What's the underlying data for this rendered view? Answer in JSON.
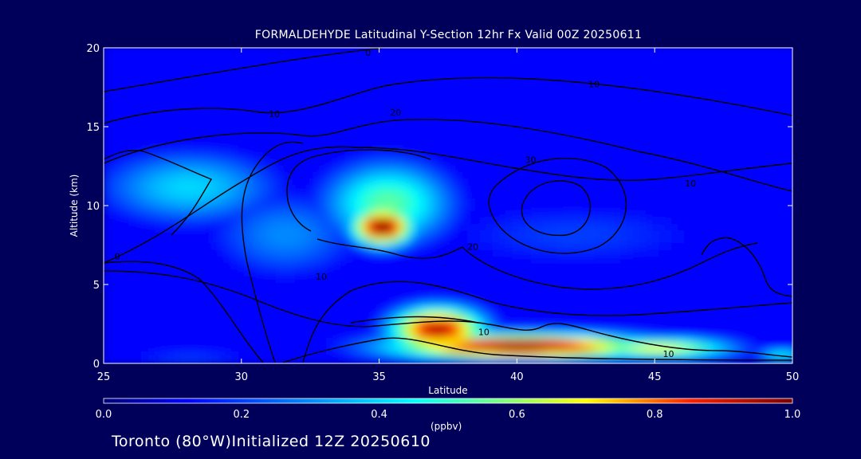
{
  "title": "FORMALDEHYDE Latitudinal Y-Section 12hr  Fx Valid 00Z 20250611",
  "footer": "Toronto (80°W)Initialized 12Z 20250610",
  "chart_data": {
    "type": "heatmap",
    "title": "FORMALDEHYDE Latitudinal Y-Section 12hr  Fx Valid 00Z 20250611",
    "xlabel": "Latitude",
    "ylabel": "Altitude (km)",
    "xlim": [
      25,
      50
    ],
    "ylim": [
      0,
      20
    ],
    "xticks": [
      "25",
      "30",
      "35",
      "40",
      "45",
      "50"
    ],
    "yticks": [
      "0",
      "5",
      "10",
      "15",
      "20"
    ],
    "colorbar": {
      "label": "(ppbv)",
      "range": [
        0.0,
        1.0
      ],
      "ticks": [
        "0.0",
        "0.2",
        "0.4",
        "0.6",
        "0.8",
        "1.0"
      ]
    },
    "field_blobs": [
      {
        "lat": 35,
        "alt": 8.5,
        "value": 1.0,
        "sx": 1.2,
        "sy": 1.3
      },
      {
        "lat": 35.2,
        "alt": 10,
        "value": 0.55,
        "sx": 2.5,
        "sy": 2.8
      },
      {
        "lat": 28,
        "alt": 11,
        "value": 0.4,
        "sx": 3.5,
        "sy": 2.5
      },
      {
        "lat": 31.5,
        "alt": 8,
        "value": 0.3,
        "sx": 3,
        "sy": 3
      },
      {
        "lat": 42,
        "alt": 8,
        "value": 0.2,
        "sx": 6,
        "sy": 2.5
      },
      {
        "lat": 40,
        "alt": 0.9,
        "value": 1.0,
        "sx": 5,
        "sy": 0.9
      },
      {
        "lat": 37,
        "alt": 2,
        "value": 0.95,
        "sx": 1.8,
        "sy": 1.5
      },
      {
        "lat": 45,
        "alt": 0.8,
        "value": 0.7,
        "sx": 3,
        "sy": 0.7
      },
      {
        "lat": 49.5,
        "alt": 0.3,
        "value": 0.5,
        "sx": 1,
        "sy": 0.4
      },
      {
        "lat": 28,
        "alt": 0.2,
        "value": 0.35,
        "sx": 3,
        "sy": 0.25
      }
    ],
    "contour_labels": [
      {
        "lat": 34.6,
        "alt": 19.5,
        "text": "0"
      },
      {
        "lat": 42.8,
        "alt": 17.5,
        "text": "10"
      },
      {
        "lat": 31.2,
        "alt": 15.6,
        "text": "10"
      },
      {
        "lat": 35.6,
        "alt": 15.7,
        "text": "20"
      },
      {
        "lat": 40.5,
        "alt": 12.7,
        "text": "30"
      },
      {
        "lat": 46.3,
        "alt": 11.2,
        "text": "10"
      },
      {
        "lat": 25.5,
        "alt": 6.6,
        "text": "0"
      },
      {
        "lat": 38.4,
        "alt": 7.2,
        "text": "20"
      },
      {
        "lat": 32.9,
        "alt": 5.3,
        "text": "10"
      },
      {
        "lat": 38.8,
        "alt": 1.8,
        "text": "10"
      },
      {
        "lat": 45.5,
        "alt": 0.4,
        "text": "10"
      }
    ]
  }
}
